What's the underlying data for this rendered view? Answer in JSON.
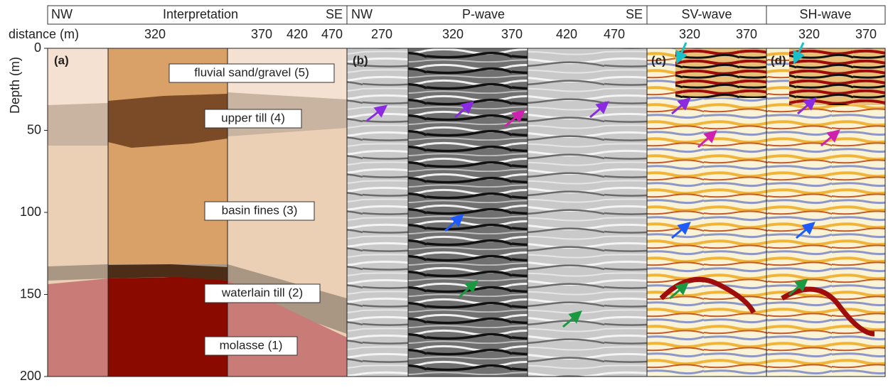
{
  "header": {
    "interpretation": {
      "left": "NW",
      "title": "Interpretation",
      "right": "SE"
    },
    "p_wave": {
      "left": "NW",
      "title": "P-wave",
      "right": "SE"
    },
    "sv_wave": "SV-wave",
    "sh_wave": "SH-wave"
  },
  "distance_axis": {
    "label": "distance (m)",
    "a_ticks": [
      320,
      370,
      420,
      470
    ],
    "b_ticks": [
      270,
      320,
      370,
      420,
      470
    ],
    "c_ticks": [
      320,
      370
    ],
    "d_ticks": [
      320,
      370
    ]
  },
  "depth_axis": {
    "label": "Depth (m)",
    "ticks": [
      0,
      50,
      100,
      150,
      200
    ]
  },
  "panels": [
    "(a)",
    "(b)",
    "(c)",
    "(d)"
  ],
  "layers": [
    "fluvial sand/gravel (5)",
    "upper till (4)",
    "basin fines (3)",
    "waterlain till (2)",
    "molasse (1)"
  ]
}
